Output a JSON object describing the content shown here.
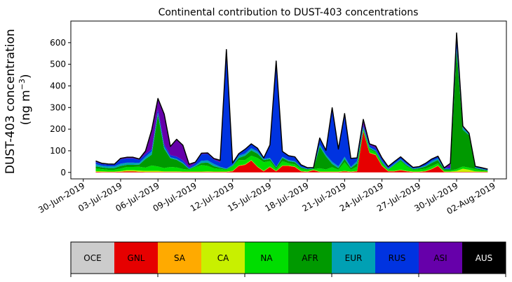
{
  "chart_data": {
    "type": "area",
    "title": "Continental contribution to DUST-403 concentrations",
    "ylabel_line1": "DUST-403 concentration",
    "ylabel_line2_prefix": "(ng m",
    "ylabel_line2_sup": "−3",
    "ylabel_line2_suffix": ")",
    "ylim": [
      -30,
      700
    ],
    "yticks": [
      0,
      100,
      200,
      300,
      400,
      500,
      600
    ],
    "xlim": [
      "2019-06-29",
      "2019-08-03"
    ],
    "xticks": [
      "30-Jun-2019",
      "03-Jul-2019",
      "06-Jul-2019",
      "09-Jul-2019",
      "12-Jul-2019",
      "15-Jul-2019",
      "18-Jul-2019",
      "21-Jul-2019",
      "24-Jul-2019",
      "27-Jul-2019",
      "30-Jul-2019",
      "02-Aug-2019"
    ],
    "x": [
      "2019-07-01",
      "2019-07-01T12",
      "2019-07-02",
      "2019-07-02T12",
      "2019-07-03",
      "2019-07-03T12",
      "2019-07-04",
      "2019-07-04T12",
      "2019-07-05",
      "2019-07-05T12",
      "2019-07-06",
      "2019-07-06T12",
      "2019-07-07",
      "2019-07-07T12",
      "2019-07-08",
      "2019-07-08T12",
      "2019-07-09",
      "2019-07-09T12",
      "2019-07-10",
      "2019-07-10T12",
      "2019-07-11",
      "2019-07-11T12",
      "2019-07-12",
      "2019-07-12T12",
      "2019-07-13",
      "2019-07-13T12",
      "2019-07-14",
      "2019-07-14T12",
      "2019-07-15",
      "2019-07-15T12",
      "2019-07-16",
      "2019-07-16T12",
      "2019-07-17",
      "2019-07-17T12",
      "2019-07-18",
      "2019-07-18T12",
      "2019-07-19",
      "2019-07-19T12",
      "2019-07-20",
      "2019-07-20T12",
      "2019-07-21",
      "2019-07-21T12",
      "2019-07-22",
      "2019-07-22T12",
      "2019-07-23",
      "2019-07-23T12",
      "2019-07-24",
      "2019-07-24T12",
      "2019-07-25",
      "2019-07-25T12",
      "2019-07-26",
      "2019-07-26T12",
      "2019-07-27",
      "2019-07-27T12",
      "2019-07-28",
      "2019-07-28T12",
      "2019-07-29",
      "2019-07-29T12",
      "2019-07-30",
      "2019-07-30T12",
      "2019-07-31",
      "2019-07-31T12",
      "2019-08-01",
      "2019-08-01T12"
    ],
    "series": [
      {
        "name": "OCE",
        "color": "#cccccc",
        "values": [
          0,
          0,
          0,
          0,
          0,
          0,
          0,
          0,
          0,
          0,
          0,
          0,
          0,
          0,
          0,
          0,
          0,
          0,
          0,
          0,
          0,
          0,
          0,
          0,
          0,
          0,
          0,
          0,
          0,
          0,
          0,
          0,
          0,
          0,
          0,
          0,
          0,
          0,
          0,
          0,
          0,
          0,
          0,
          0,
          0,
          0,
          0,
          0,
          0,
          0,
          0,
          0,
          0,
          0,
          0,
          0,
          0,
          0,
          0,
          0,
          0,
          0,
          0,
          0
        ]
      },
      {
        "name": "GNL",
        "color": "#e60000",
        "values": [
          3,
          2,
          2,
          2,
          3,
          5,
          5,
          3,
          2,
          2,
          2,
          2,
          2,
          2,
          2,
          2,
          2,
          2,
          2,
          2,
          2,
          2,
          5,
          30,
          35,
          55,
          25,
          5,
          25,
          5,
          30,
          30,
          25,
          5,
          2,
          10,
          2,
          2,
          2,
          2,
          5,
          2,
          5,
          190,
          90,
          80,
          30,
          5,
          5,
          10,
          5,
          2,
          2,
          5,
          15,
          30,
          2,
          2,
          2,
          2,
          2,
          2,
          2,
          2
        ]
      },
      {
        "name": "SA",
        "color": "#ffaa00",
        "values": [
          0,
          0,
          0,
          0,
          0,
          0,
          0,
          0,
          0,
          0,
          0,
          0,
          0,
          0,
          0,
          0,
          0,
          0,
          0,
          0,
          0,
          0,
          0,
          0,
          0,
          0,
          0,
          0,
          0,
          0,
          0,
          0,
          0,
          0,
          0,
          0,
          0,
          0,
          0,
          0,
          0,
          0,
          0,
          0,
          0,
          0,
          0,
          0,
          0,
          0,
          0,
          0,
          0,
          0,
          0,
          0,
          0,
          0,
          0,
          0,
          0,
          0,
          0,
          0
        ]
      },
      {
        "name": "CA",
        "color": "#c8f000",
        "values": [
          3,
          3,
          2,
          2,
          3,
          5,
          5,
          5,
          5,
          5,
          5,
          3,
          3,
          3,
          2,
          2,
          2,
          2,
          3,
          2,
          2,
          2,
          2,
          2,
          2,
          2,
          2,
          2,
          2,
          2,
          2,
          2,
          2,
          2,
          2,
          2,
          2,
          2,
          2,
          2,
          2,
          2,
          2,
          2,
          2,
          2,
          2,
          2,
          2,
          2,
          2,
          2,
          2,
          2,
          2,
          2,
          2,
          2,
          5,
          15,
          10,
          3,
          2,
          2
        ]
      },
      {
        "name": "NA",
        "color": "#00dd00",
        "values": [
          12,
          10,
          8,
          8,
          12,
          15,
          15,
          18,
          15,
          25,
          20,
          15,
          20,
          18,
          12,
          8,
          20,
          30,
          25,
          15,
          12,
          8,
          20,
          25,
          20,
          20,
          40,
          40,
          25,
          8,
          20,
          10,
          10,
          10,
          8,
          3,
          15,
          10,
          20,
          8,
          40,
          8,
          20,
          8,
          15,
          10,
          10,
          5,
          25,
          40,
          20,
          8,
          10,
          10,
          12,
          10,
          5,
          5,
          8,
          10,
          10,
          10,
          5,
          3
        ]
      },
      {
        "name": "AFR",
        "color": "#009900",
        "values": [
          10,
          8,
          8,
          8,
          12,
          10,
          10,
          10,
          40,
          50,
          240,
          90,
          40,
          35,
          25,
          3,
          3,
          10,
          15,
          10,
          5,
          3,
          3,
          10,
          20,
          25,
          20,
          10,
          10,
          8,
          15,
          10,
          10,
          5,
          3,
          2,
          100,
          60,
          15,
          8,
          15,
          8,
          15,
          5,
          5,
          5,
          5,
          2,
          3,
          5,
          5,
          3,
          5,
          10,
          15,
          15,
          5,
          5,
          550,
          170,
          150,
          5,
          5,
          2
        ]
      },
      {
        "name": "EUR",
        "color": "#00a0b4",
        "values": [
          10,
          8,
          8,
          8,
          10,
          10,
          10,
          8,
          10,
          15,
          10,
          10,
          5,
          5,
          5,
          3,
          5,
          10,
          10,
          10,
          5,
          3,
          5,
          10,
          10,
          10,
          10,
          5,
          5,
          2,
          5,
          5,
          5,
          3,
          2,
          2,
          10,
          8,
          10,
          8,
          10,
          5,
          10,
          5,
          5,
          5,
          5,
          3,
          5,
          5,
          5,
          3,
          3,
          5,
          8,
          8,
          2,
          3,
          10,
          10,
          5,
          3,
          3,
          2
        ]
      },
      {
        "name": "RUS",
        "color": "#0033e0",
        "values": [
          10,
          8,
          8,
          8,
          20,
          20,
          20,
          15,
          12,
          10,
          15,
          10,
          10,
          10,
          10,
          5,
          10,
          30,
          30,
          20,
          20,
          520,
          8,
          10,
          20,
          20,
          15,
          5,
          60,
          490,
          25,
          20,
          20,
          10,
          5,
          3,
          30,
          20,
          250,
          80,
          200,
          40,
          15,
          10,
          10,
          10,
          10,
          5,
          10,
          10,
          10,
          5,
          5,
          10,
          10,
          10,
          5,
          5,
          60,
          2,
          2,
          3,
          3,
          2
        ]
      },
      {
        "name": "ASI",
        "color": "#6600aa",
        "values": [
          5,
          3,
          3,
          2,
          5,
          5,
          5,
          3,
          15,
          90,
          50,
          140,
          40,
          80,
          70,
          15,
          5,
          5,
          5,
          5,
          10,
          30,
          0,
          0,
          0,
          0,
          0,
          0,
          0,
          0,
          0,
          0,
          0,
          0,
          0,
          0,
          0,
          0,
          0,
          0,
          0,
          0,
          0,
          25,
          5,
          10,
          5,
          5,
          0,
          0,
          0,
          0,
          0,
          0,
          0,
          0,
          0,
          20,
          10,
          5,
          2,
          2,
          2,
          2
        ]
      },
      {
        "name": "AUS",
        "color": "#000000",
        "values": [
          0,
          0,
          0,
          0,
          0,
          0,
          0,
          0,
          0,
          0,
          0,
          0,
          0,
          0,
          0,
          0,
          0,
          0,
          0,
          0,
          0,
          0,
          0,
          0,
          0,
          0,
          0,
          0,
          0,
          0,
          0,
          0,
          0,
          0,
          0,
          0,
          0,
          0,
          0,
          0,
          0,
          0,
          0,
          0,
          0,
          0,
          0,
          0,
          0,
          0,
          0,
          0,
          0,
          0,
          0,
          0,
          0,
          0,
          0,
          0,
          0,
          0,
          0,
          0
        ]
      }
    ]
  }
}
